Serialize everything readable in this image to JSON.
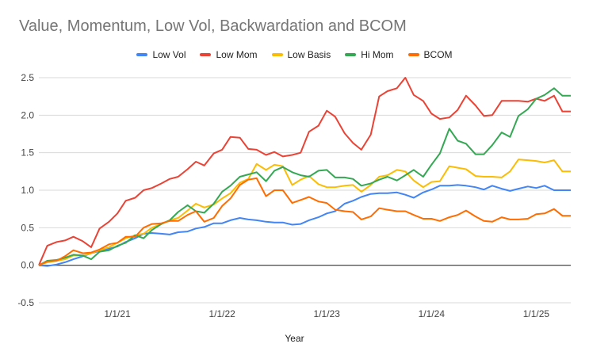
{
  "chart_data": {
    "type": "line",
    "title": "Value, Momentum, Low Vol, Backwardation and BCOM",
    "xlabel": "Year",
    "ylabel": "",
    "ylim": [
      -0.5,
      2.5
    ],
    "yticks": [
      "2.5",
      "2.0",
      "1.5",
      "1.0",
      "0.5",
      "0.0",
      "-0.5"
    ],
    "xticks": [
      {
        "label": "1/1/21",
        "x": 2021.0
      },
      {
        "label": "1/1/22",
        "x": 2022.0
      },
      {
        "label": "1/1/23",
        "x": 2023.0
      },
      {
        "label": "1/1/24",
        "x": 2024.0
      },
      {
        "label": "1/1/25",
        "x": 2025.0
      }
    ],
    "xlim": [
      2020.25,
      2025.33
    ],
    "grid": true,
    "legend": "top",
    "x": [
      2020.25,
      2020.33,
      2020.42,
      2020.5,
      2020.58,
      2020.67,
      2020.75,
      2020.83,
      2020.92,
      2021.0,
      2021.08,
      2021.17,
      2021.25,
      2021.33,
      2021.42,
      2021.5,
      2021.58,
      2021.67,
      2021.75,
      2021.83,
      2021.92,
      2022.0,
      2022.08,
      2022.17,
      2022.25,
      2022.33,
      2022.42,
      2022.5,
      2022.58,
      2022.67,
      2022.75,
      2022.83,
      2022.92,
      2023.0,
      2023.08,
      2023.17,
      2023.25,
      2023.33,
      2023.42,
      2023.5,
      2023.58,
      2023.67,
      2023.75,
      2023.83,
      2023.92,
      2024.0,
      2024.08,
      2024.17,
      2024.25,
      2024.33,
      2024.42,
      2024.5,
      2024.58,
      2024.67,
      2024.75,
      2024.83,
      2024.92,
      2025.0,
      2025.08,
      2025.17,
      2025.25,
      2025.33
    ],
    "series": [
      {
        "name": "Low Vol",
        "color": "#4285f4",
        "values": [
          0.0,
          -0.01,
          0.01,
          0.04,
          0.08,
          0.12,
          0.16,
          0.19,
          0.22,
          0.25,
          0.31,
          0.36,
          0.42,
          0.43,
          0.42,
          0.41,
          0.44,
          0.45,
          0.49,
          0.51,
          0.56,
          0.56,
          0.6,
          0.63,
          0.61,
          0.6,
          0.58,
          0.57,
          0.57,
          0.54,
          0.55,
          0.6,
          0.64,
          0.69,
          0.72,
          0.82,
          0.86,
          0.91,
          0.95,
          0.96,
          0.96,
          0.97,
          0.94,
          0.9,
          0.97,
          1.01,
          1.06,
          1.06,
          1.07,
          1.06,
          1.04,
          1.01,
          1.06,
          1.02,
          0.99,
          1.02,
          1.05,
          1.03,
          1.06,
          1.0,
          1.0,
          1.0
        ]
      },
      {
        "name": "Low Mom",
        "color": "#ea4335",
        "values": [
          0.0,
          0.26,
          0.31,
          0.33,
          0.38,
          0.32,
          0.24,
          0.49,
          0.58,
          0.69,
          0.86,
          0.9,
          1.0,
          1.03,
          1.09,
          1.15,
          1.18,
          1.28,
          1.38,
          1.33,
          1.49,
          1.54,
          1.71,
          1.7,
          1.55,
          1.54,
          1.47,
          1.51,
          1.45,
          1.47,
          1.5,
          1.78,
          1.86,
          2.06,
          1.98,
          1.76,
          1.63,
          1.54,
          1.74,
          2.25,
          2.32,
          2.36,
          2.5,
          2.27,
          2.19,
          2.02,
          1.95,
          1.97,
          2.07,
          2.26,
          2.13,
          1.99,
          2.0,
          2.19,
          2.19,
          2.19,
          2.18,
          2.22,
          2.19,
          2.26,
          2.05,
          2.05
        ]
      },
      {
        "name": "Low Basis",
        "color": "#fbbc04",
        "values": [
          0.0,
          0.04,
          0.06,
          0.08,
          0.13,
          0.13,
          0.16,
          0.2,
          0.24,
          0.3,
          0.36,
          0.4,
          0.42,
          0.5,
          0.55,
          0.6,
          0.63,
          0.73,
          0.82,
          0.77,
          0.81,
          0.89,
          0.96,
          1.1,
          1.15,
          1.35,
          1.27,
          1.34,
          1.32,
          1.07,
          1.14,
          1.19,
          1.08,
          1.04,
          1.04,
          1.06,
          1.07,
          0.98,
          1.07,
          1.18,
          1.2,
          1.27,
          1.25,
          1.13,
          1.04,
          1.11,
          1.12,
          1.32,
          1.3,
          1.28,
          1.19,
          1.18,
          1.18,
          1.17,
          1.25,
          1.41,
          1.4,
          1.39,
          1.37,
          1.4,
          1.25,
          1.25
        ]
      },
      {
        "name": "Hi Mom",
        "color": "#34a853",
        "values": [
          0.0,
          0.06,
          0.07,
          0.1,
          0.14,
          0.13,
          0.08,
          0.18,
          0.2,
          0.26,
          0.3,
          0.4,
          0.36,
          0.47,
          0.55,
          0.6,
          0.71,
          0.8,
          0.72,
          0.7,
          0.82,
          0.98,
          1.06,
          1.18,
          1.21,
          1.24,
          1.12,
          1.26,
          1.31,
          1.24,
          1.2,
          1.18,
          1.26,
          1.27,
          1.17,
          1.17,
          1.15,
          1.06,
          1.09,
          1.14,
          1.18,
          1.13,
          1.2,
          1.27,
          1.18,
          1.34,
          1.49,
          1.82,
          1.66,
          1.62,
          1.48,
          1.48,
          1.6,
          1.77,
          1.71,
          1.99,
          2.08,
          2.22,
          2.27,
          2.36,
          2.26,
          2.26
        ]
      },
      {
        "name": "BCOM",
        "color": "#ff6d01",
        "values": [
          0.0,
          0.05,
          0.06,
          0.12,
          0.2,
          0.16,
          0.17,
          0.21,
          0.28,
          0.3,
          0.38,
          0.38,
          0.5,
          0.55,
          0.56,
          0.59,
          0.59,
          0.67,
          0.72,
          0.58,
          0.63,
          0.79,
          0.89,
          1.07,
          1.14,
          1.16,
          0.92,
          1.0,
          1.0,
          0.83,
          0.87,
          0.91,
          0.85,
          0.83,
          0.74,
          0.72,
          0.71,
          0.61,
          0.65,
          0.76,
          0.74,
          0.72,
          0.72,
          0.67,
          0.62,
          0.62,
          0.59,
          0.64,
          0.67,
          0.73,
          0.65,
          0.59,
          0.58,
          0.64,
          0.61,
          0.61,
          0.62,
          0.68,
          0.69,
          0.75,
          0.66,
          0.66
        ]
      }
    ]
  }
}
